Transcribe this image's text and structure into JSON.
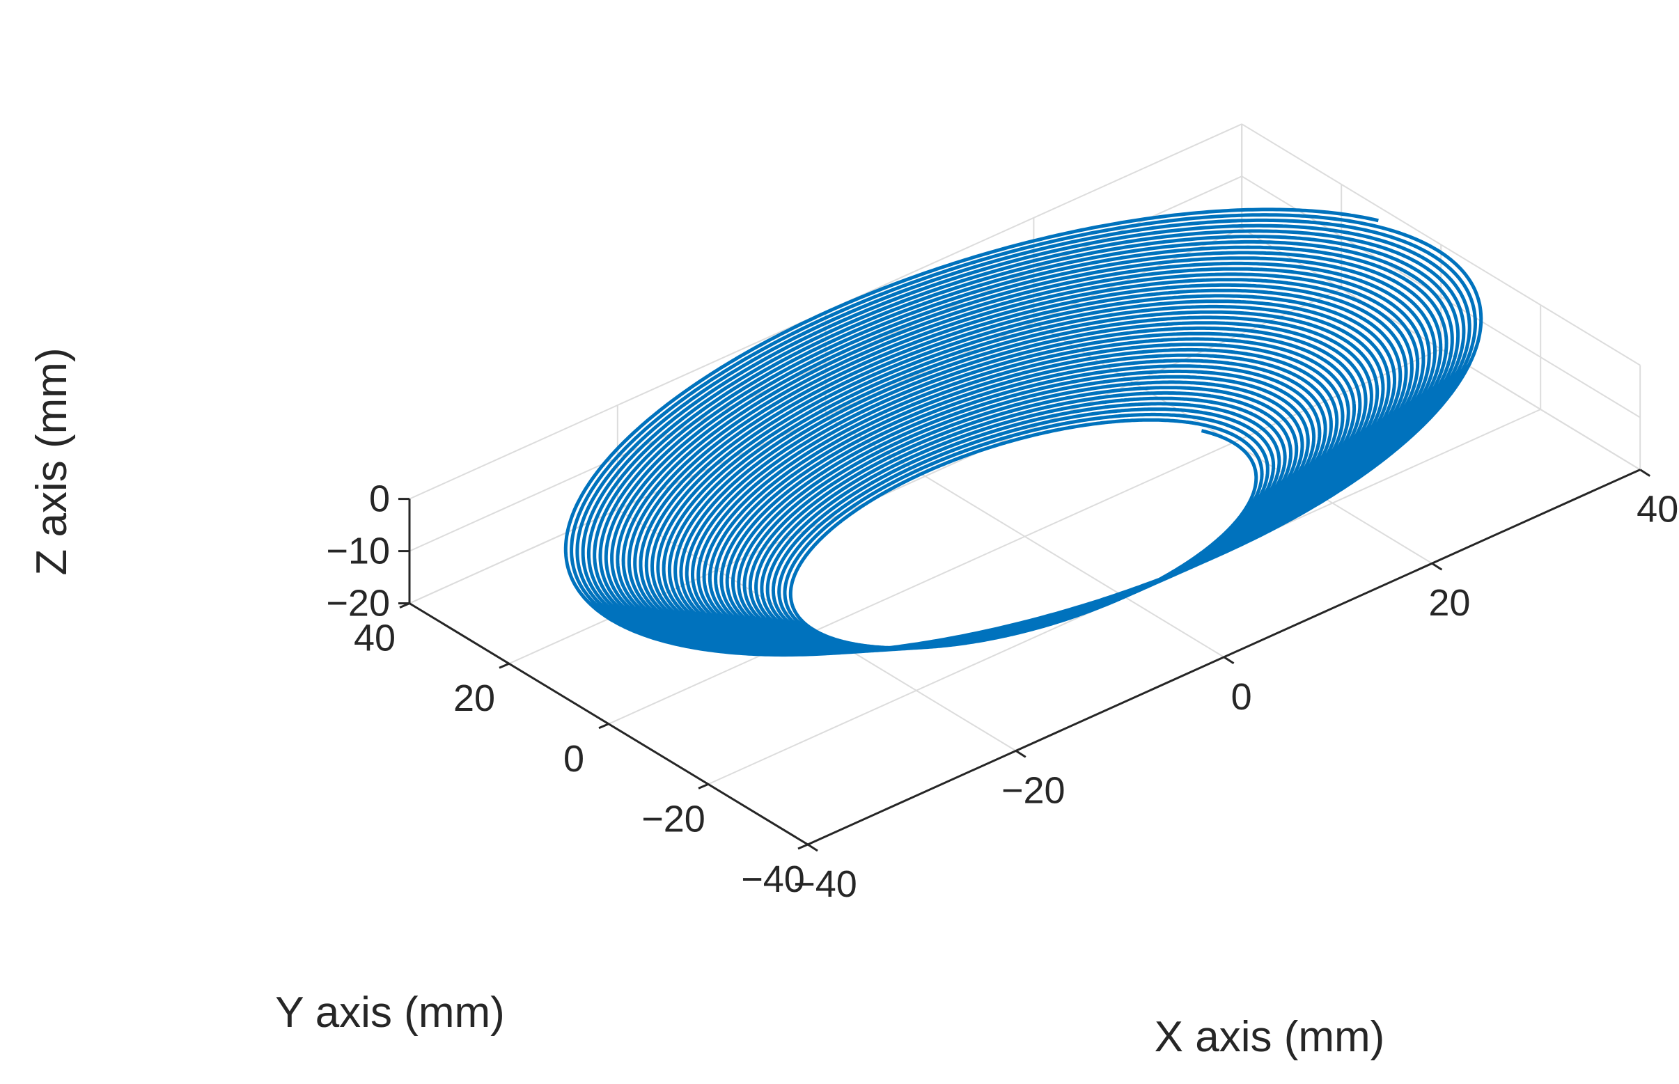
{
  "chart_data": {
    "type": "line",
    "projection": "3d",
    "title": "",
    "xlabel": "X axis (mm)",
    "ylabel": "Y axis (mm)",
    "zlabel": "Z axis (mm)",
    "xlim": [
      -40,
      40
    ],
    "ylim": [
      -40,
      40
    ],
    "zlim": [
      -20,
      0
    ],
    "x_ticks": [
      "−40",
      "−20",
      "0",
      "20",
      "40"
    ],
    "y_ticks": [
      "−40",
      "−20",
      "0",
      "20",
      "40"
    ],
    "z_ticks": [
      "−20",
      "−10",
      "0"
    ],
    "grid": true,
    "series": [
      {
        "color": "#0072BD",
        "shape": "conical spiral (truncated cone)",
        "turns": 40,
        "radius_top": 40,
        "radius_bottom": 20,
        "z_top": 0,
        "z_bottom": -20
      }
    ]
  }
}
